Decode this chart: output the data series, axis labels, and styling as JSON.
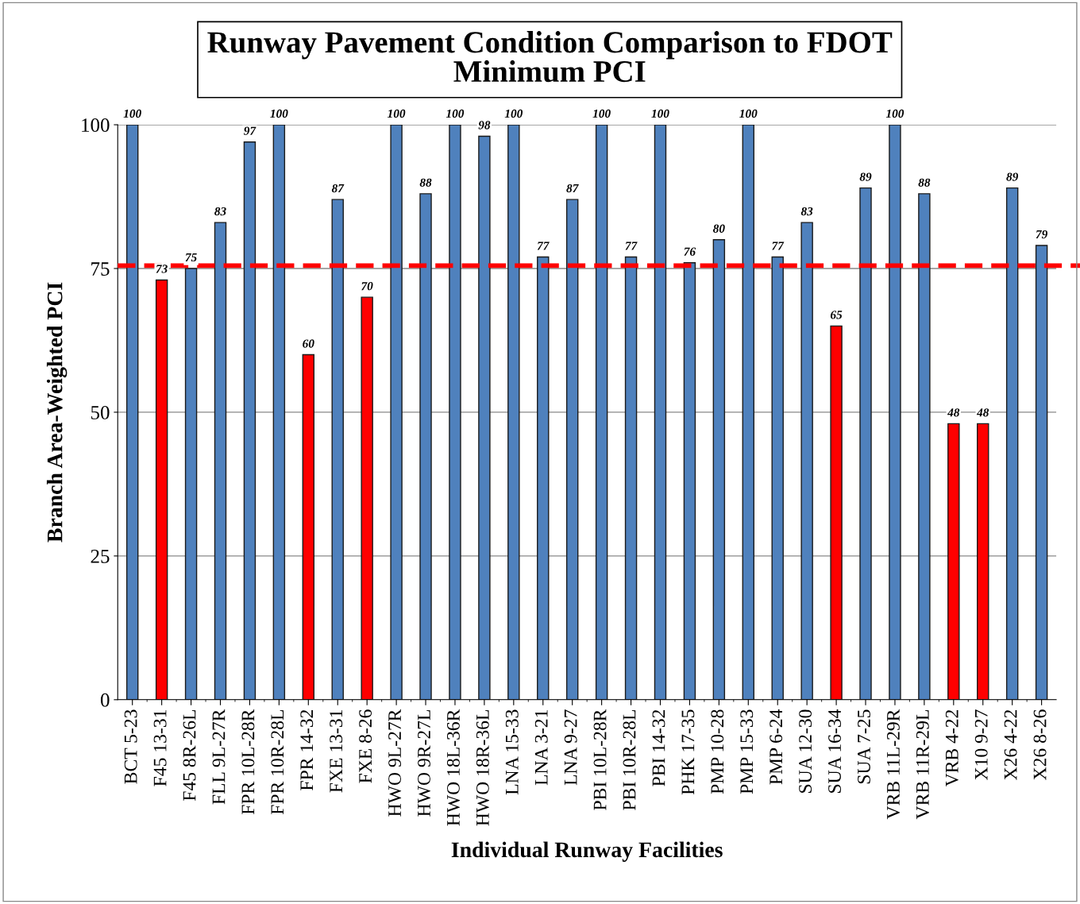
{
  "chart_data": {
    "type": "bar",
    "title": "Runway Pavement Condition Comparison to FDOT\nMinimum PCI",
    "xlabel": "Individual Runway Facilities",
    "ylabel": "Branch Area-Weighted PCI",
    "categories": [
      "BCT 5-23",
      "F45 13-31",
      "F45 8R-26L",
      "FLL 9L-27R",
      "FPR 10L-28R",
      "FPR 10R-28L",
      "FPR 14-32",
      "FXE 13-31",
      "FXE 8-26",
      "HWO 9L-27R",
      "HWO 9R-27L",
      "HWO 18L-36R",
      "HWO 18R-36L",
      "LNA 15-33",
      "LNA 3-21",
      "LNA 9-27",
      "PBI 10L-28R",
      "PBI 10R-28L",
      "PBI 14-32",
      "PHK 17-35",
      "PMP 10-28",
      "PMP 15-33",
      "PMP 6-24",
      "SUA 12-30",
      "SUA 16-34",
      "SUA 7-25",
      "VRB 11L-29R",
      "VRB 11R-29L",
      "VRB 4-22",
      "X10 9-27",
      "X26 4-22",
      "X26 8-26"
    ],
    "values": [
      100,
      73,
      75,
      83,
      97,
      100,
      60,
      87,
      70,
      100,
      88,
      100,
      98,
      100,
      77,
      87,
      100,
      77,
      100,
      76,
      80,
      100,
      77,
      83,
      65,
      89,
      100,
      88,
      48,
      48,
      89,
      79
    ],
    "colors": [
      "#4f81bd",
      "#ff0000",
      "#4f81bd",
      "#4f81bd",
      "#4f81bd",
      "#4f81bd",
      "#ff0000",
      "#4f81bd",
      "#ff0000",
      "#4f81bd",
      "#4f81bd",
      "#4f81bd",
      "#4f81bd",
      "#4f81bd",
      "#4f81bd",
      "#4f81bd",
      "#4f81bd",
      "#4f81bd",
      "#4f81bd",
      "#4f81bd",
      "#4f81bd",
      "#4f81bd",
      "#4f81bd",
      "#4f81bd",
      "#ff0000",
      "#4f81bd",
      "#4f81bd",
      "#4f81bd",
      "#ff0000",
      "#ff0000",
      "#4f81bd",
      "#4f81bd"
    ],
    "data_labels": true,
    "ylim": [
      0,
      100
    ],
    "yticks": [
      0,
      25,
      50,
      75,
      100
    ],
    "grid": "y",
    "ref_lines": [
      {
        "axis": "y",
        "value": 75.5,
        "color": "#ff0000",
        "line_style": "dashed"
      }
    ]
  }
}
